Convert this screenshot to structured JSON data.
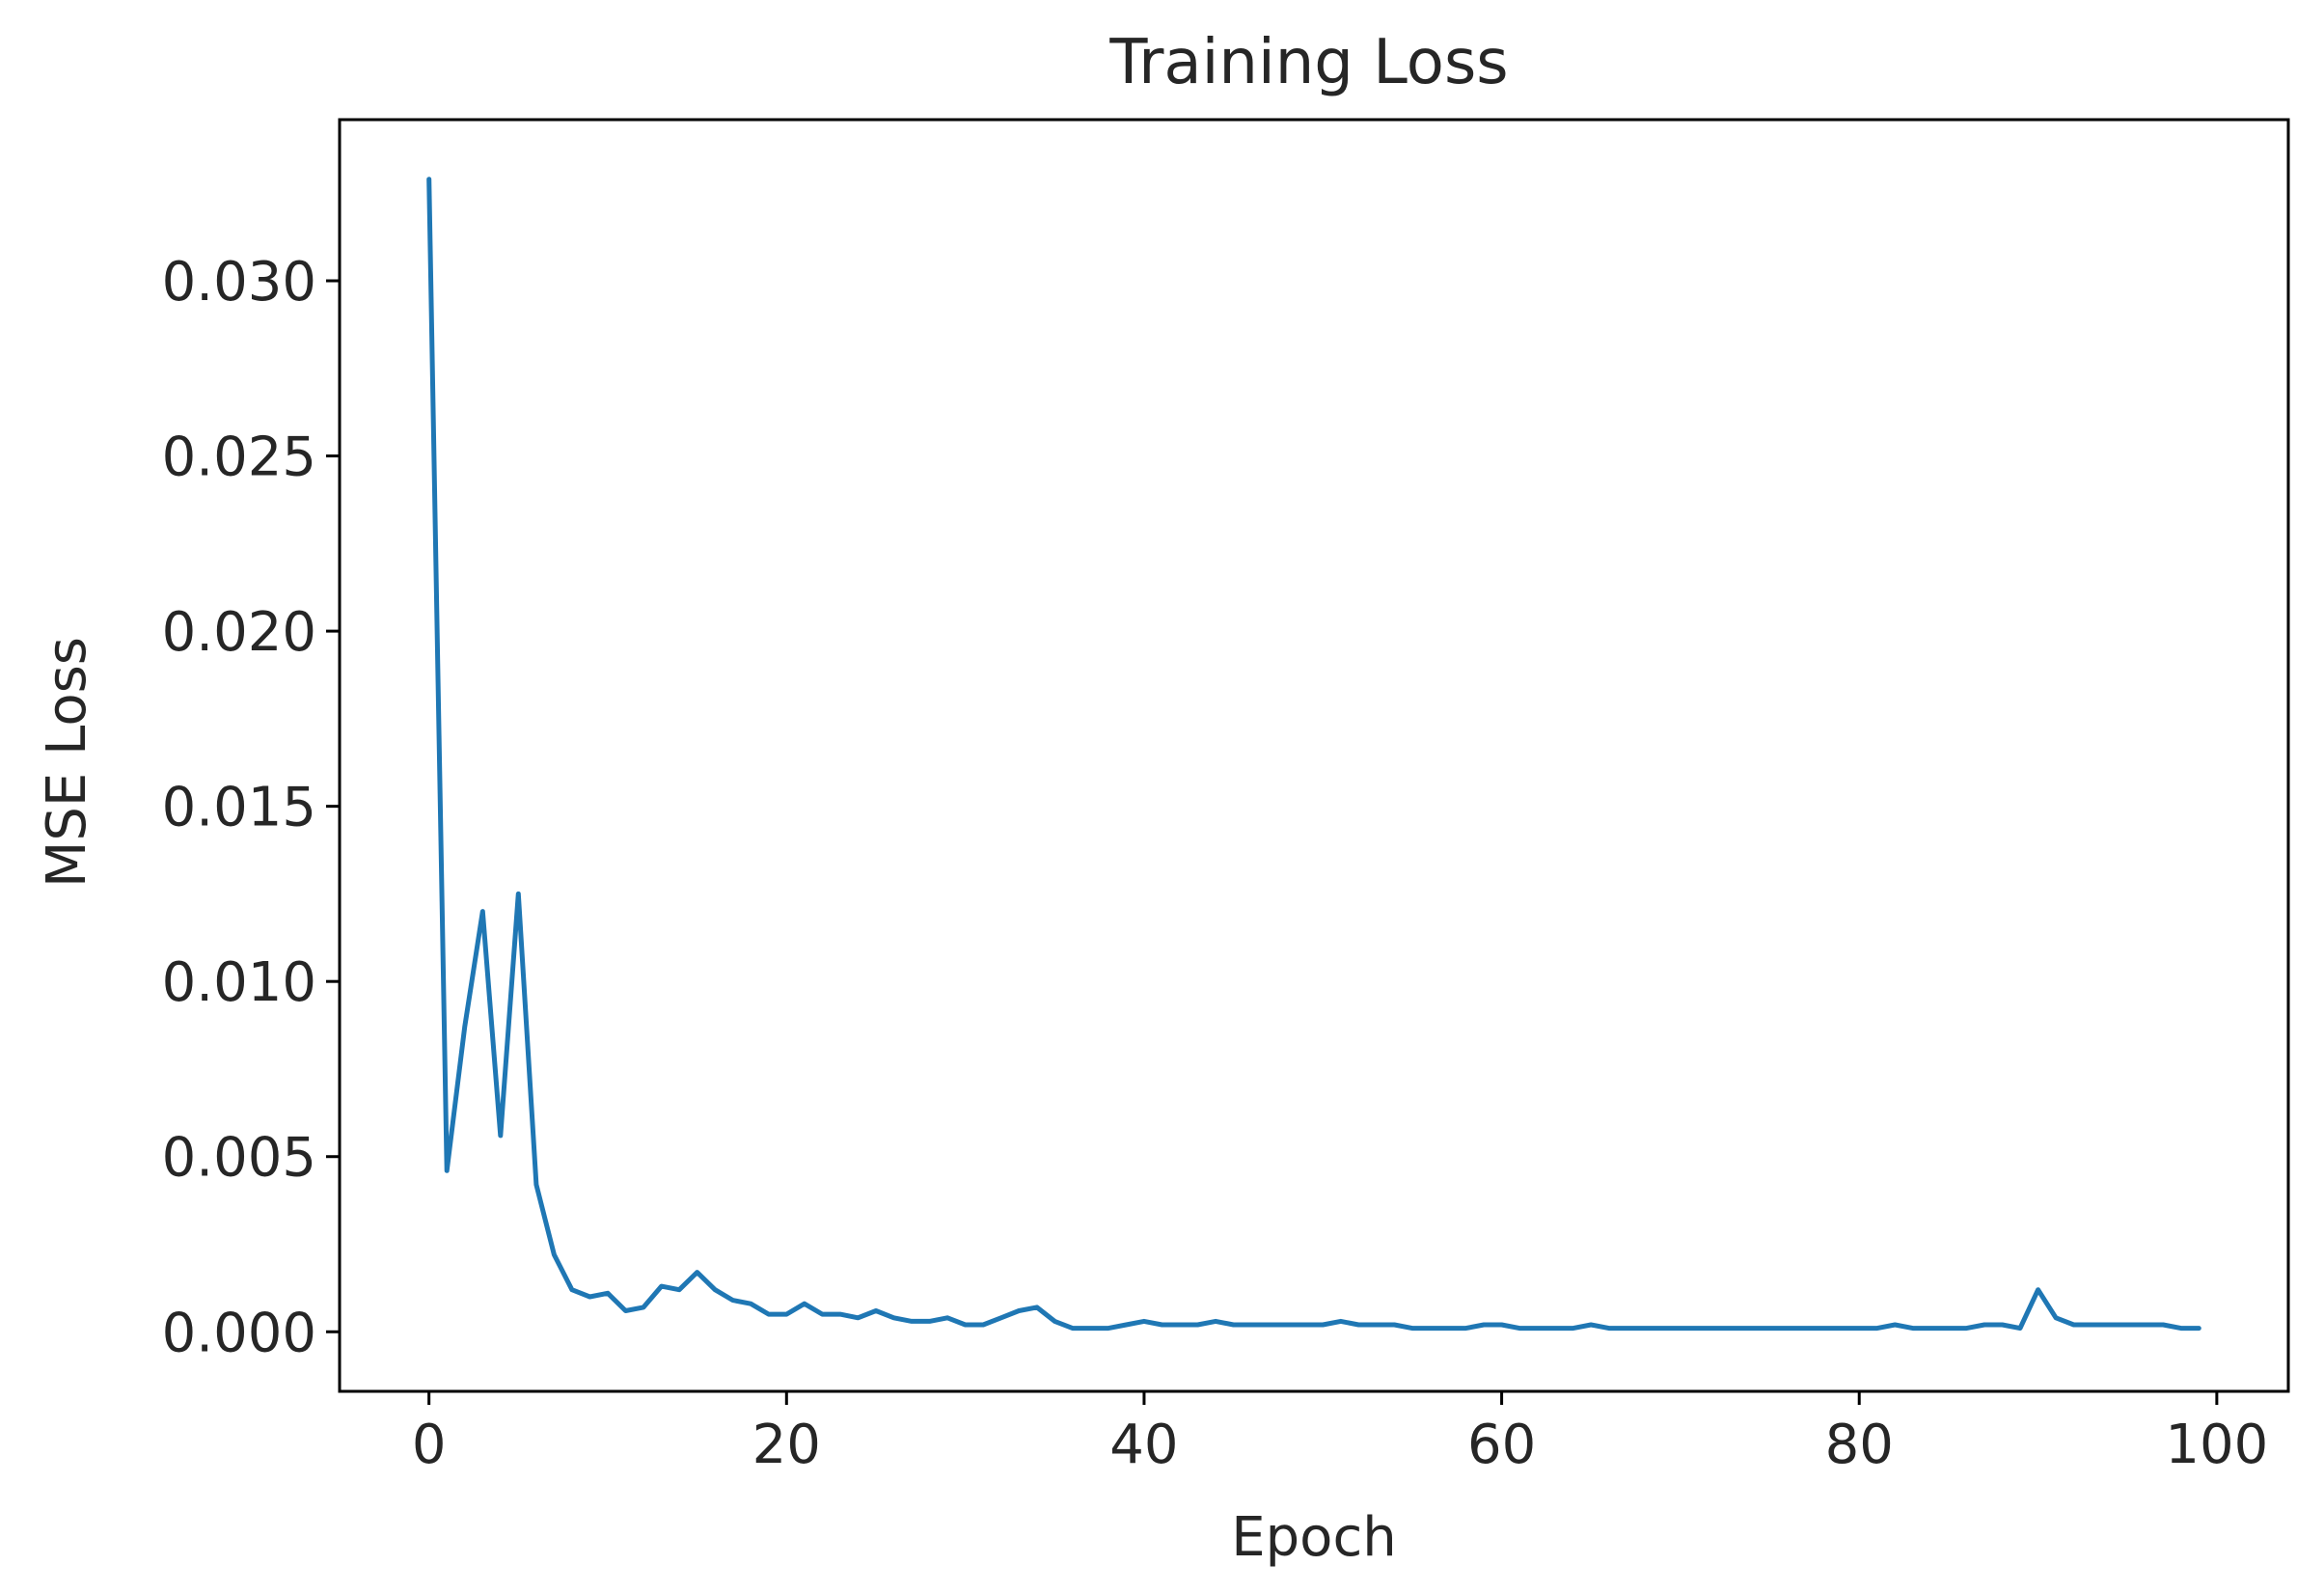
{
  "chart_data": {
    "type": "line",
    "title": "Training Loss",
    "xlabel": "Epoch",
    "ylabel": "MSE Loss",
    "xlim": [
      -5,
      104
    ],
    "ylim": [
      -0.0017,
      0.0346
    ],
    "x_ticks": [
      0,
      20,
      40,
      60,
      80,
      100
    ],
    "x_tick_labels": [
      "0",
      "20",
      "40",
      "60",
      "80",
      "100"
    ],
    "y_ticks": [
      0.0,
      0.005,
      0.01,
      0.015,
      0.02,
      0.025,
      0.03
    ],
    "y_tick_labels": [
      "0.000",
      "0.005",
      "0.010",
      "0.015",
      "0.020",
      "0.025",
      "0.030"
    ],
    "grid": false,
    "legend": "none",
    "series_color": "#1f77b4",
    "series": [
      {
        "x": [
          0,
          1,
          2,
          3,
          4,
          5,
          6,
          7,
          8,
          9,
          10,
          11,
          12,
          13,
          14,
          15,
          16,
          17,
          18,
          19,
          20,
          21,
          22,
          23,
          24,
          25,
          26,
          27,
          28,
          29,
          30,
          31,
          32,
          33,
          34,
          35,
          36,
          37,
          38,
          39,
          40,
          41,
          42,
          43,
          44,
          45,
          46,
          47,
          48,
          49,
          50,
          51,
          52,
          53,
          54,
          55,
          56,
          57,
          58,
          59,
          60,
          61,
          62,
          63,
          64,
          65,
          66,
          67,
          68,
          69,
          70,
          71,
          72,
          73,
          74,
          75,
          76,
          77,
          78,
          79,
          80,
          81,
          82,
          83,
          84,
          85,
          86,
          87,
          88,
          89,
          90,
          91,
          92,
          93,
          94,
          95,
          96,
          97,
          98,
          99
        ],
        "values": [
          0.0329,
          0.0046,
          0.0087,
          0.012,
          0.0056,
          0.0125,
          0.0042,
          0.0022,
          0.0012,
          0.001,
          0.0011,
          0.0006,
          0.0007,
          0.0013,
          0.0012,
          0.0017,
          0.0012,
          0.0009,
          0.0008,
          0.0005,
          0.0005,
          0.0008,
          0.0005,
          0.0005,
          0.0004,
          0.0006,
          0.0004,
          0.0003,
          0.0003,
          0.0004,
          0.0002,
          0.0002,
          0.0004,
          0.0006,
          0.0007,
          0.0003,
          0.0001,
          0.0001,
          0.0001,
          0.0002,
          0.0003,
          0.0002,
          0.0002,
          0.0002,
          0.0003,
          0.0002,
          0.0002,
          0.0002,
          0.0002,
          0.0002,
          0.0002,
          0.0003,
          0.0002,
          0.0002,
          0.0002,
          0.0001,
          0.0001,
          0.0001,
          0.0001,
          0.0002,
          0.0002,
          0.0001,
          0.0001,
          0.0001,
          0.0001,
          0.0002,
          0.0001,
          0.0001,
          0.0001,
          0.0001,
          0.0001,
          0.0001,
          0.0001,
          0.0001,
          0.0001,
          0.0001,
          0.0001,
          0.0001,
          0.0001,
          0.0001,
          0.0001,
          0.0001,
          0.0002,
          0.0001,
          0.0001,
          0.0001,
          0.0001,
          0.0002,
          0.0002,
          0.0001,
          0.0012,
          0.0004,
          0.0002,
          0.0002,
          0.0002,
          0.0002,
          0.0002,
          0.0002,
          0.0001,
          0.0001
        ]
      }
    ]
  }
}
